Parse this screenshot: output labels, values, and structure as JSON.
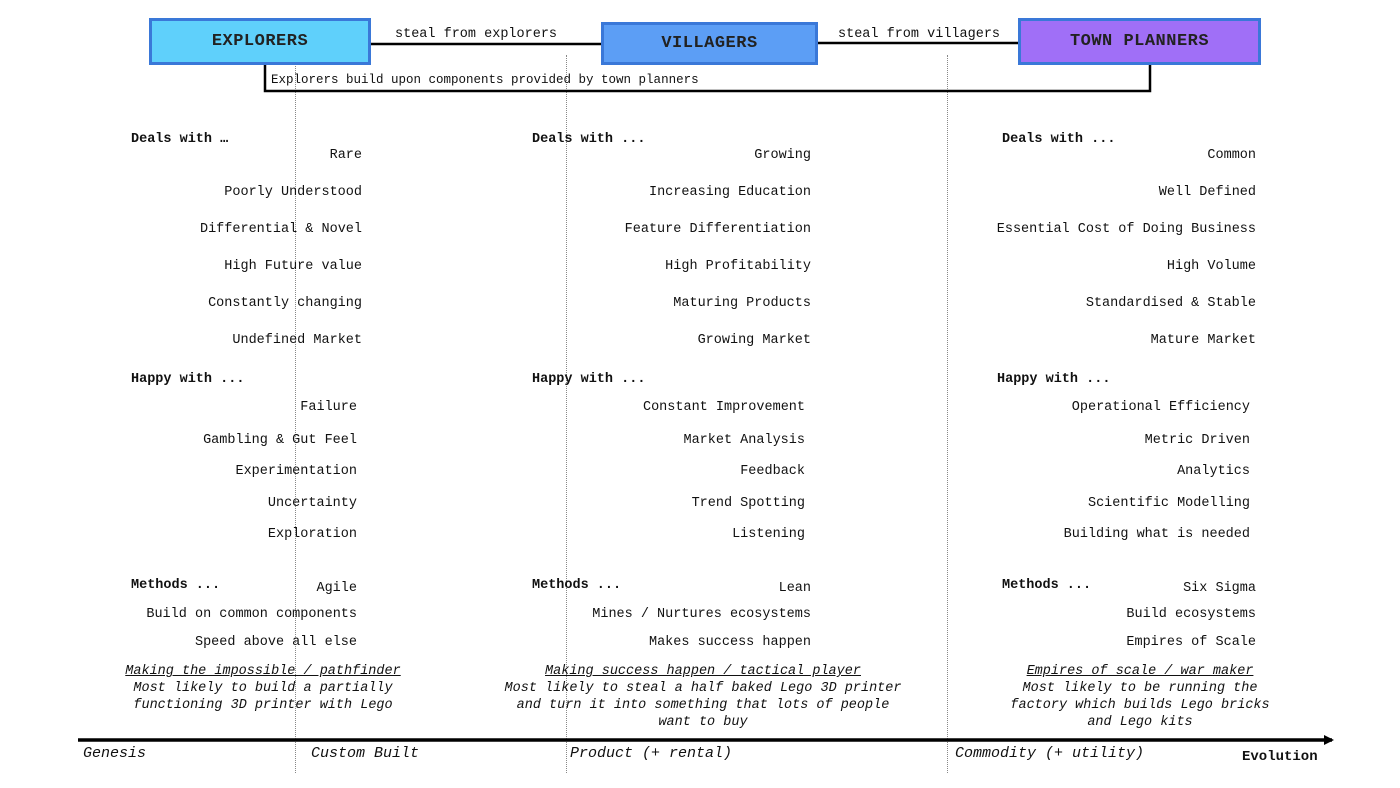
{
  "roles": {
    "explorers": {
      "label": "EXPLORERS",
      "color": "#5fd0fb"
    },
    "villagers": {
      "label": "VILLAGERS",
      "color": "#5c9ef5"
    },
    "town_planners": {
      "label": "TOWN PLANNERS",
      "color": "#a06ff7"
    },
    "border_color": "#3a78d8"
  },
  "arrows": {
    "explorers_to_villagers": "steal from explorers",
    "villagers_to_town_planners": "steal from villagers",
    "town_planners_to_explorers": "Explorers build upon components provided by town planners"
  },
  "columns": [
    {
      "deals_header": "Deals with …",
      "deals": [
        "Rare",
        "Poorly Understood",
        "Differential & Novel",
        "High Future value",
        "Constantly changing",
        "Undefined Market"
      ],
      "happy_header": "Happy with ...",
      "happy": [
        "Failure",
        "Gambling & Gut Feel",
        "Experimentation",
        "Uncertainty",
        "Exploration"
      ],
      "methods_header": "Methods ...",
      "methods": [
        "Agile",
        "Build on common components",
        "Speed above all else"
      ],
      "title": "Making the impossible / pathfinder",
      "description": [
        "Most likely to build a partially",
        "functioning 3D printer with Lego"
      ]
    },
    {
      "deals_header": "Deals with ...",
      "deals": [
        "Growing",
        "Increasing Education",
        "Feature Differentiation",
        "High Profitability",
        "Maturing Products",
        "Growing Market"
      ],
      "happy_header": "Happy with ...",
      "happy": [
        "Constant Improvement",
        "Market Analysis",
        "Feedback",
        "Trend Spotting",
        "Listening"
      ],
      "methods_header": "Methods ...",
      "methods": [
        "Lean",
        "Mines / Nurtures ecosystems",
        "Makes success happen"
      ],
      "title": "Making success happen / tactical player",
      "description": [
        "Most likely to steal a half baked Lego 3D printer",
        "and turn it into something that lots of people",
        "want to buy"
      ]
    },
    {
      "deals_header": "Deals with ...",
      "deals": [
        "Common",
        "Well Defined",
        "Essential Cost of Doing Business",
        "High Volume",
        "Standardised & Stable",
        "Mature Market"
      ],
      "happy_header": "Happy with ...",
      "happy": [
        "Operational Efficiency",
        "Metric Driven",
        "Analytics",
        "Scientific Modelling",
        "Building what is needed"
      ],
      "methods_header": "Methods ...",
      "methods": [
        "Six Sigma",
        "Build ecosystems",
        "Empires of Scale"
      ],
      "title": "Empires of scale / war maker",
      "description": [
        "Most likely to be running the",
        "factory which builds Lego bricks",
        "and Lego kits"
      ]
    }
  ],
  "axis": {
    "stages": [
      "Genesis",
      "Custom Built",
      "Product (+ rental)",
      "Commodity (+ utility)"
    ],
    "label": "Evolution"
  }
}
